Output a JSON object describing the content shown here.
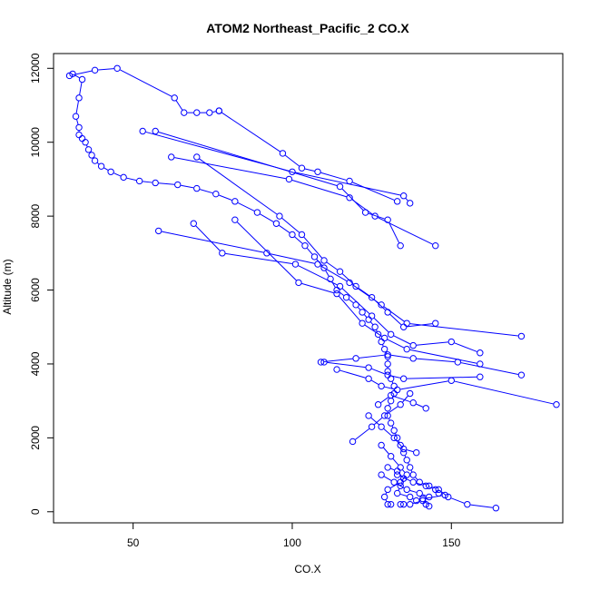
{
  "chart_data": {
    "type": "line",
    "title": "ATOM2 Northeast_Pacific_2 CO.X",
    "xlabel": "CO.X",
    "ylabel": "Altitude (m)",
    "xlim": [
      25,
      185
    ],
    "ylim": [
      -300,
      12400
    ],
    "xticks": [
      50,
      100,
      150
    ],
    "yticks": [
      0,
      2000,
      4000,
      6000,
      8000,
      10000,
      12000
    ],
    "grid": false,
    "legend": "none",
    "color": "#0000ff",
    "marker": "open-circle",
    "series": [
      {
        "points": [
          [
            164,
            100
          ],
          [
            155,
            200
          ],
          [
            149,
            400
          ],
          [
            146,
            600
          ],
          [
            143,
            700
          ],
          [
            140,
            800
          ],
          [
            138,
            1000
          ],
          [
            137,
            1200
          ],
          [
            136,
            1400
          ],
          [
            135,
            1600
          ],
          [
            134,
            1800
          ],
          [
            133,
            2000
          ],
          [
            132,
            2200
          ],
          [
            131,
            2400
          ],
          [
            130,
            2600
          ],
          [
            130,
            2800
          ],
          [
            131,
            3000
          ],
          [
            132,
            3200
          ],
          [
            132,
            3400
          ],
          [
            131,
            3600
          ],
          [
            130,
            3800
          ],
          [
            130,
            4000
          ],
          [
            130,
            4200
          ],
          [
            129,
            4400
          ],
          [
            128,
            4600
          ],
          [
            127,
            4800
          ],
          [
            126,
            5000
          ],
          [
            124,
            5200
          ],
          [
            122,
            5400
          ],
          [
            120,
            5600
          ],
          [
            117,
            5800
          ],
          [
            114,
            6000
          ],
          [
            112,
            6300
          ],
          [
            110,
            6600
          ],
          [
            107,
            6900
          ],
          [
            104,
            7200
          ],
          [
            100,
            7500
          ],
          [
            95,
            7800
          ],
          [
            89,
            8100
          ],
          [
            82,
            8400
          ],
          [
            76,
            8600
          ],
          [
            70,
            8750
          ],
          [
            64,
            8850
          ],
          [
            57,
            8900
          ],
          [
            52,
            8950
          ],
          [
            47,
            9050
          ],
          [
            43,
            9200
          ],
          [
            40,
            9350
          ],
          [
            38,
            9500
          ],
          [
            37,
            9650
          ],
          [
            36,
            9800
          ],
          [
            35,
            10000
          ],
          [
            34,
            10100
          ],
          [
            33,
            10200
          ],
          [
            33,
            10400
          ],
          [
            32,
            10700
          ],
          [
            33,
            11200
          ],
          [
            34,
            11700
          ],
          [
            31,
            11850
          ],
          [
            30,
            11800
          ],
          [
            38,
            11950
          ],
          [
            45,
            12000
          ],
          [
            63,
            11200
          ],
          [
            66,
            10800
          ],
          [
            70,
            10800
          ],
          [
            74,
            10800
          ],
          [
            77,
            10850
          ]
        ]
      },
      {
        "points": [
          [
            77,
            10850
          ],
          [
            97,
            9700
          ],
          [
            103,
            9300
          ],
          [
            108,
            9200
          ],
          [
            118,
            8950
          ],
          [
            133,
            8400
          ]
        ]
      },
      {
        "points": [
          [
            53,
            10300
          ],
          [
            100,
            9200
          ],
          [
            135,
            8550
          ],
          [
            137,
            8350
          ]
        ]
      },
      {
        "points": [
          [
            57,
            10300
          ],
          [
            115,
            8800
          ],
          [
            123,
            8100
          ],
          [
            130,
            7900
          ],
          [
            134,
            7200
          ]
        ]
      },
      {
        "points": [
          [
            62,
            9600
          ],
          [
            99,
            9000
          ],
          [
            118,
            8500
          ],
          [
            126,
            8000
          ],
          [
            145,
            7200
          ]
        ]
      },
      {
        "points": [
          [
            70,
            9600
          ],
          [
            96,
            8000
          ],
          [
            103,
            7500
          ],
          [
            110,
            6800
          ],
          [
            115,
            6500
          ],
          [
            120,
            6100
          ],
          [
            125,
            5800
          ],
          [
            130,
            5400
          ],
          [
            135,
            5000
          ],
          [
            145,
            5100
          ]
        ]
      },
      {
        "points": [
          [
            58,
            7600
          ],
          [
            92,
            7000
          ],
          [
            108,
            6700
          ],
          [
            118,
            6200
          ],
          [
            128,
            5600
          ],
          [
            136,
            5100
          ],
          [
            172,
            4750
          ]
        ]
      },
      {
        "points": [
          [
            69,
            7800
          ],
          [
            78,
            7000
          ],
          [
            101,
            6700
          ],
          [
            115,
            6100
          ],
          [
            125,
            5300
          ],
          [
            131,
            4800
          ],
          [
            138,
            4500
          ],
          [
            150,
            4600
          ],
          [
            159,
            4300
          ]
        ]
      },
      {
        "points": [
          [
            82,
            7900
          ],
          [
            102,
            6200
          ],
          [
            114,
            5900
          ],
          [
            122,
            5100
          ],
          [
            129,
            4700
          ],
          [
            136,
            4400
          ],
          [
            159,
            4000
          ]
        ]
      },
      {
        "points": [
          [
            109,
            4050
          ],
          [
            120,
            4150
          ],
          [
            130,
            4250
          ],
          [
            138,
            4150
          ],
          [
            152,
            4050
          ],
          [
            172,
            3700
          ]
        ]
      },
      {
        "points": [
          [
            110,
            4050
          ],
          [
            124,
            3900
          ],
          [
            130,
            3700
          ],
          [
            135,
            3600
          ],
          [
            159,
            3650
          ]
        ]
      },
      {
        "points": [
          [
            114,
            3850
          ],
          [
            124,
            3600
          ],
          [
            128,
            3400
          ],
          [
            133,
            3300
          ],
          [
            150,
            3550
          ],
          [
            183,
            2900
          ]
        ]
      },
      {
        "points": [
          [
            127,
            2900
          ],
          [
            131,
            3150
          ],
          [
            138,
            2950
          ],
          [
            142,
            2800
          ]
        ]
      },
      {
        "points": [
          [
            119,
            1900
          ],
          [
            125,
            2300
          ],
          [
            129,
            2600
          ],
          [
            134,
            2900
          ],
          [
            137,
            3200
          ]
        ]
      },
      {
        "points": [
          [
            124,
            2600
          ],
          [
            128,
            2300
          ],
          [
            132,
            2000
          ],
          [
            135,
            1700
          ],
          [
            139,
            1600
          ]
        ]
      },
      {
        "points": [
          [
            128,
            1800
          ],
          [
            131,
            1500
          ],
          [
            134,
            1200
          ],
          [
            136,
            1000
          ],
          [
            134,
            800
          ],
          [
            130,
            600
          ],
          [
            129,
            400
          ],
          [
            130,
            200
          ],
          [
            131,
            200
          ]
        ]
      },
      {
        "points": [
          [
            128,
            1000
          ],
          [
            132,
            800
          ],
          [
            136,
            600
          ],
          [
            140,
            500
          ],
          [
            143,
            400
          ],
          [
            141,
            300
          ],
          [
            137,
            200
          ],
          [
            135,
            200
          ],
          [
            134,
            200
          ]
        ]
      },
      {
        "points": [
          [
            133,
            1000
          ],
          [
            138,
            800
          ],
          [
            142,
            700
          ],
          [
            145,
            600
          ],
          [
            146,
            500
          ],
          [
            148,
            450
          ],
          [
            141,
            350
          ],
          [
            143,
            150
          ],
          [
            142,
            200
          ]
        ]
      },
      {
        "points": [
          [
            130,
            1200
          ],
          [
            133,
            1100
          ],
          [
            135,
            900
          ],
          [
            134,
            700
          ],
          [
            133,
            500
          ],
          [
            137,
            400
          ],
          [
            139,
            300
          ]
        ]
      }
    ]
  }
}
